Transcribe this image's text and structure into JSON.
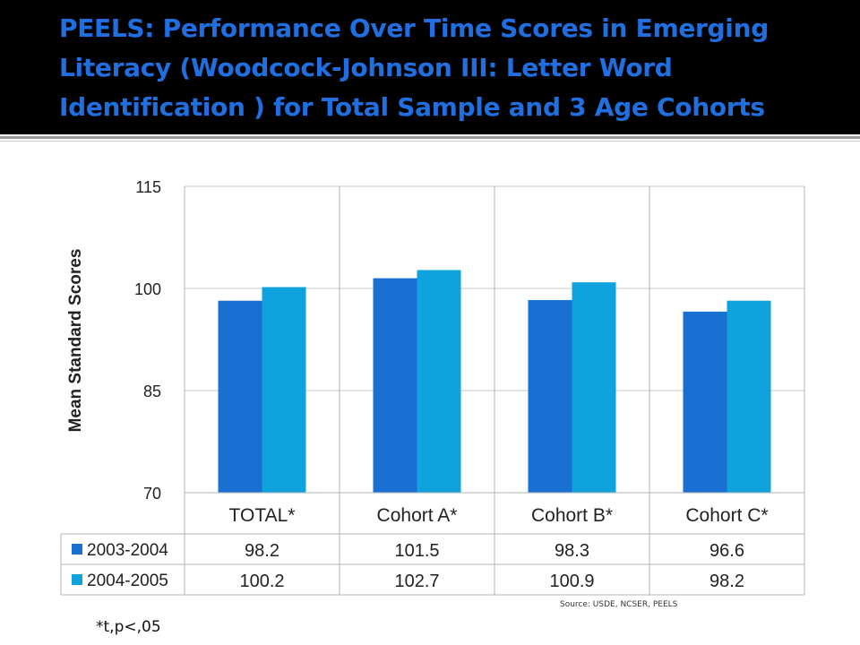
{
  "slide": {
    "title": "PEELS: Performance Over Time Scores in Emerging Literacy (Woodcock-Johnson III: Letter Word Identification ) for Total Sample and 3 Age Cohorts",
    "source": "Source: USDE, NCSER, PEELS",
    "footnote": "*t,p<,05"
  },
  "chart_data": {
    "type": "bar",
    "title": "",
    "xlabel": "",
    "ylabel": "Mean Standard Scores",
    "categories": [
      "TOTAL*",
      "Cohort A*",
      "Cohort B*",
      "Cohort C*"
    ],
    "series": [
      {
        "name": "2003-2004",
        "values": [
          98.2,
          101.5,
          98.3,
          96.6
        ],
        "value_labels": [
          "98.2",
          "101.5",
          "98.3",
          "96.6"
        ],
        "color": "#1a6fd2"
      },
      {
        "name": "2004-2005",
        "values": [
          100.2,
          102.7,
          100.9,
          98.2
        ],
        "value_labels": [
          "100.2",
          "102.7",
          "100.9",
          "98.2"
        ],
        "color": "#0fa2dc"
      }
    ],
    "ylim": [
      70,
      115
    ],
    "yticks": [
      70,
      85,
      100,
      115
    ],
    "grid": true,
    "legend": "data-table"
  }
}
